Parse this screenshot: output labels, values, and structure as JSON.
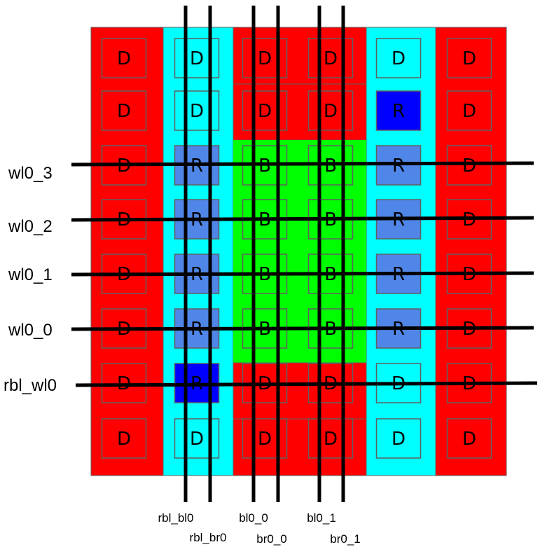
{
  "colors": {
    "dummy_red": "#ff0000",
    "replica_cyan": "#00ffff",
    "bitcell_green": "#00ff00",
    "replica_cell_blue": "#4f86e8",
    "active_replica_blue": "#0000ff",
    "wire": "#000000",
    "outline": "#606060"
  },
  "grid": [
    [
      "D",
      "D",
      "D",
      "D",
      "D",
      "D"
    ],
    [
      "D",
      "D",
      "D",
      "D",
      "R*",
      "D"
    ],
    [
      "D",
      "R",
      "B",
      "B",
      "R",
      "D"
    ],
    [
      "D",
      "R",
      "B",
      "B",
      "R",
      "D"
    ],
    [
      "D",
      "R",
      "B",
      "B",
      "R",
      "D"
    ],
    [
      "D",
      "R",
      "B",
      "B",
      "R",
      "D"
    ],
    [
      "D",
      "R*",
      "D",
      "D",
      "D",
      "D"
    ],
    [
      "D",
      "D",
      "D",
      "D",
      "D",
      "D"
    ]
  ],
  "wordlines": [
    {
      "label": "wl0_3"
    },
    {
      "label": "wl0_2"
    },
    {
      "label": "wl0_1"
    },
    {
      "label": "wl0_0"
    },
    {
      "label": "rbl_wl0"
    }
  ],
  "bitlines": [
    {
      "label": "rbl_bl0"
    },
    {
      "label": "rbl_br0"
    },
    {
      "label": "bl0_0"
    },
    {
      "label": "br0_0"
    },
    {
      "label": "bl0_1"
    },
    {
      "label": "br0_1"
    }
  ]
}
